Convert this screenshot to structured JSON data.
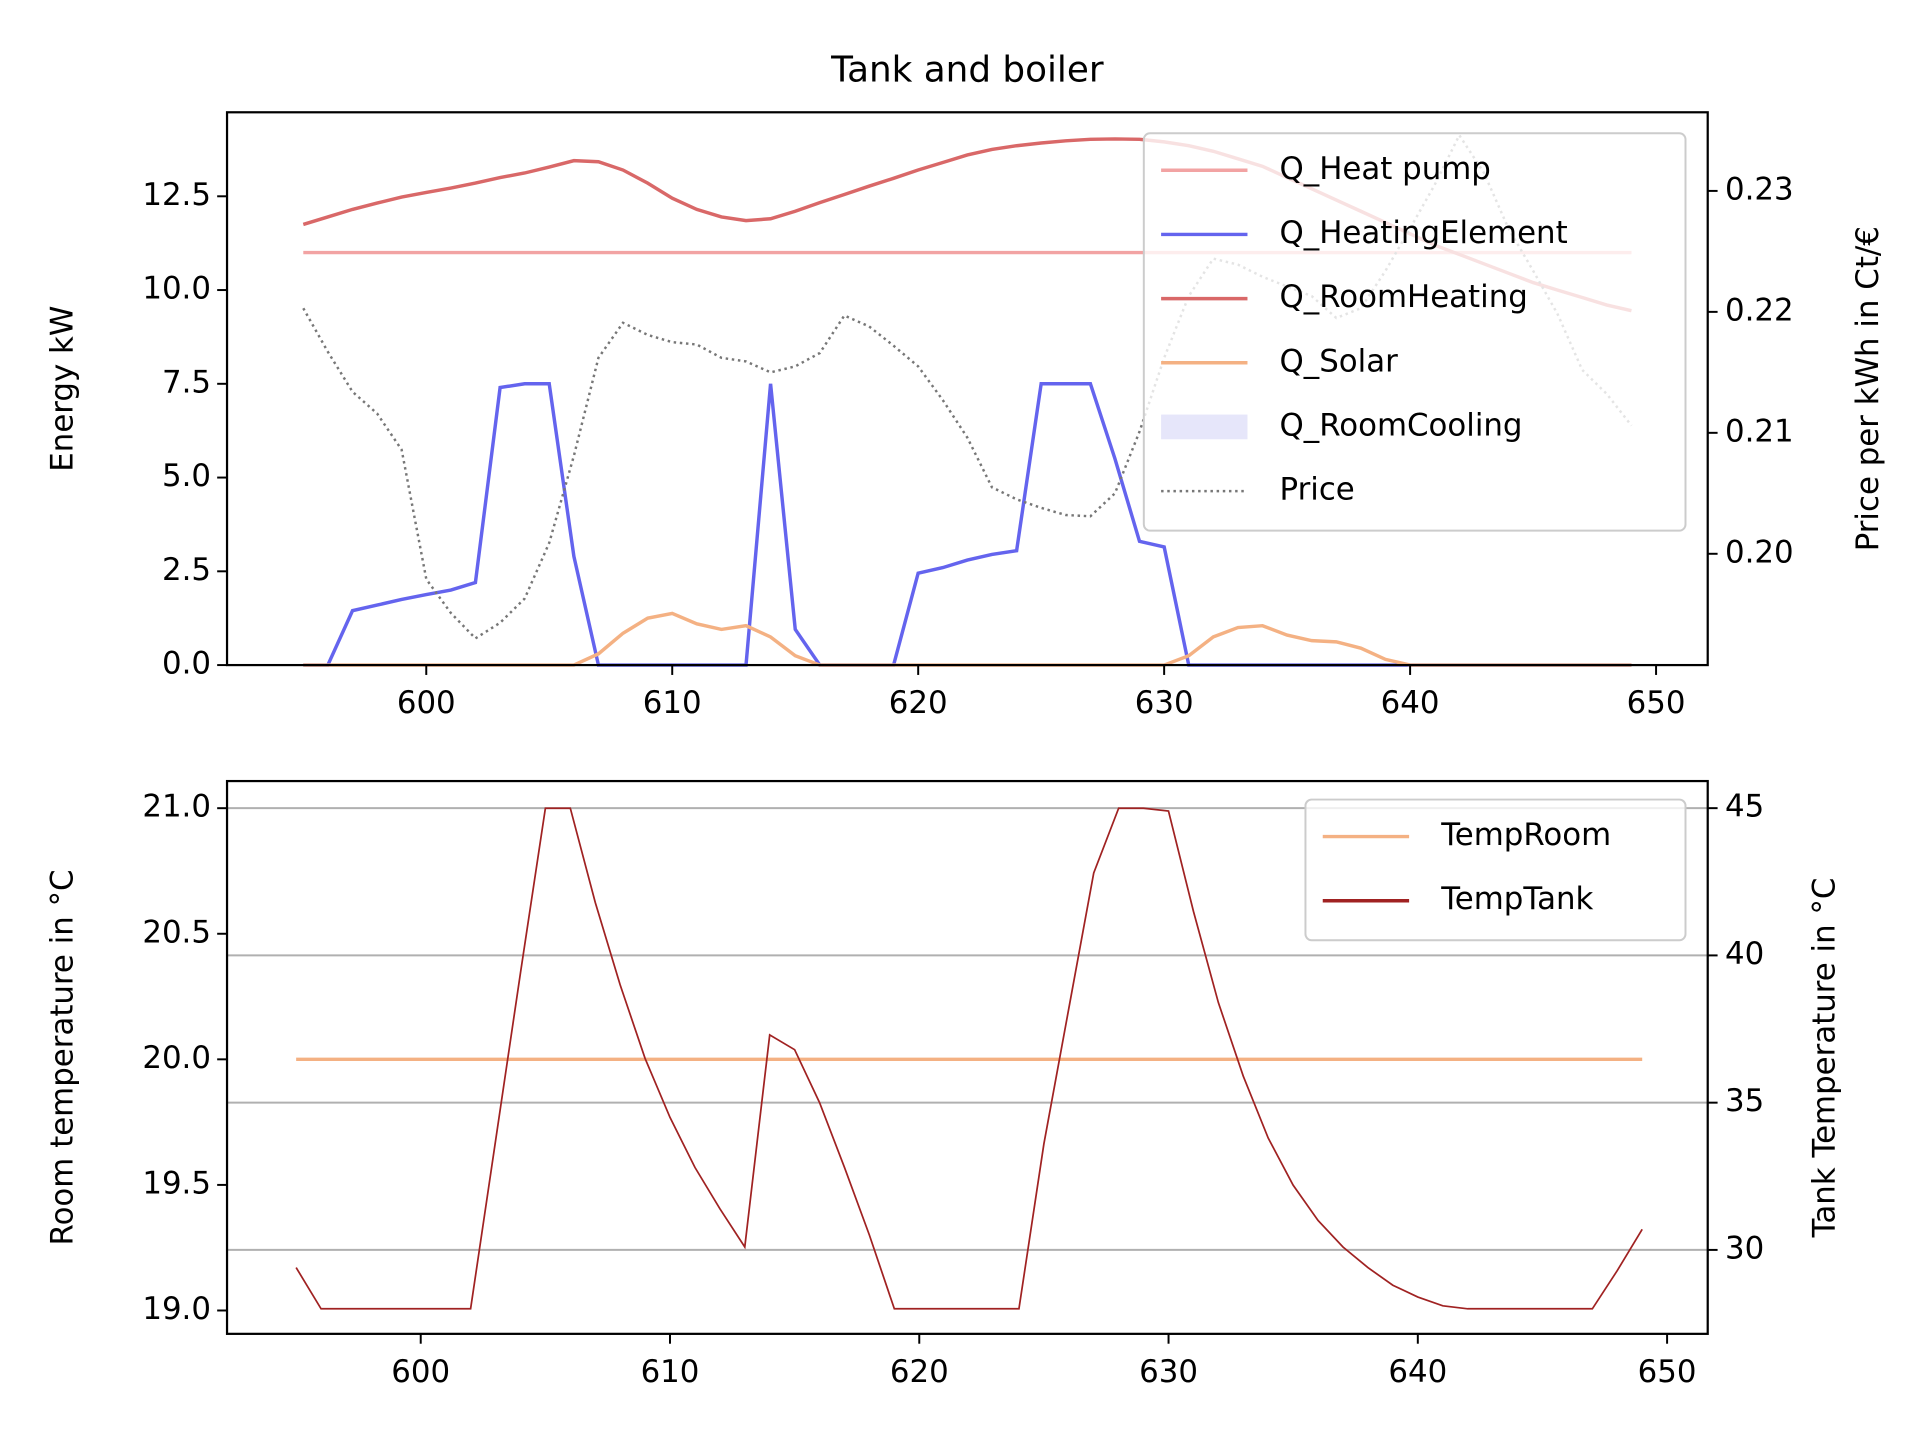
{
  "chart_data": [
    {
      "type": "line",
      "title": "Tank and boiler",
      "ylabel": "Energy kW",
      "y2label": "Price per kWh in Ct/€",
      "x": [
        595,
        596,
        597,
        598,
        599,
        600,
        601,
        602,
        603,
        604,
        605,
        606,
        607,
        608,
        609,
        610,
        611,
        612,
        613,
        614,
        615,
        616,
        617,
        618,
        619,
        620,
        621,
        622,
        623,
        624,
        625,
        626,
        627,
        628,
        629,
        630,
        631,
        632,
        633,
        634,
        635,
        636,
        637,
        638,
        639,
        640,
        641,
        642,
        643,
        644,
        645,
        646,
        647,
        648,
        649
      ],
      "xlim": [
        591.9,
        652.1
      ],
      "xticks": [
        600,
        610,
        620,
        630,
        640,
        650
      ],
      "ylim": [
        0,
        14.74
      ],
      "yticks": [
        {
          "value": 0,
          "label": "0.0"
        },
        2.5,
        {
          "value": 5,
          "label": "5.0"
        },
        7.5,
        {
          "value": 10,
          "label": "10.0"
        },
        12.5
      ],
      "y2lim": [
        0.1908,
        0.2365
      ],
      "y2ticks": [
        {
          "value": 0.2,
          "label": "0.20"
        },
        0.21,
        0.22,
        0.23
      ],
      "legend": "upper right",
      "series": [
        {
          "name": "Q_Heat pump",
          "color": "#f2a3a3",
          "values": [
            11,
            11,
            11,
            11,
            11,
            11,
            11,
            11,
            11,
            11,
            11,
            11,
            11,
            11,
            11,
            11,
            11,
            11,
            11,
            11,
            11,
            11,
            11,
            11,
            11,
            11,
            11,
            11,
            11,
            11,
            11,
            11,
            11,
            11,
            11,
            11,
            11,
            11,
            11,
            11,
            11,
            11,
            11,
            11,
            11,
            11,
            11,
            11,
            11,
            11,
            11,
            11,
            11,
            11,
            11
          ]
        },
        {
          "name": "Q_HeatingElement",
          "color": "#6464ee",
          "values": [
            0,
            0,
            1.45,
            1.6,
            1.75,
            1.88,
            2.0,
            2.2,
            7.4,
            7.5,
            7.5,
            2.9,
            0,
            0,
            0,
            0,
            0,
            0,
            0,
            7.5,
            0.95,
            0,
            0,
            0,
            0,
            2.45,
            2.6,
            2.8,
            2.95,
            3.05,
            7.5,
            7.5,
            7.5,
            5.5,
            3.3,
            3.15,
            0,
            0,
            0,
            0,
            0,
            0,
            0,
            0,
            0,
            0,
            0,
            0,
            0,
            0,
            0,
            0,
            0,
            0,
            0
          ]
        },
        {
          "name": "Q_RoomHeating",
          "color": "#d96868",
          "values": [
            11.75,
            11.95,
            12.15,
            12.32,
            12.48,
            12.6,
            12.72,
            12.85,
            13.0,
            13.12,
            13.28,
            13.45,
            13.42,
            13.2,
            12.85,
            12.45,
            12.15,
            11.95,
            11.85,
            11.9,
            12.1,
            12.33,
            12.55,
            12.77,
            12.98,
            13.2,
            13.4,
            13.6,
            13.75,
            13.85,
            13.92,
            13.98,
            14.02,
            14.03,
            14.02,
            13.95,
            13.85,
            13.7,
            13.5,
            13.3,
            13.0,
            12.7,
            12.4,
            12.1,
            11.8,
            11.5,
            11.2,
            10.95,
            10.7,
            10.45,
            10.2,
            10.0,
            9.8,
            9.6,
            9.45
          ]
        },
        {
          "name": "Q_Solar",
          "color": "#f4b183",
          "values": [
            0,
            0,
            0,
            0,
            0,
            0,
            0,
            0,
            0,
            0,
            0,
            0,
            0.3,
            0.85,
            1.25,
            1.38,
            1.1,
            0.95,
            1.05,
            0.75,
            0.25,
            0,
            0,
            0,
            0,
            0,
            0,
            0,
            0,
            0,
            0,
            0,
            0,
            0,
            0,
            0,
            0.25,
            0.75,
            1.0,
            1.05,
            0.8,
            0.65,
            0.62,
            0.45,
            0.15,
            0,
            0,
            0,
            0,
            0,
            0,
            0,
            0,
            0,
            0
          ]
        },
        {
          "name": "Q_RoomCooling",
          "color": "#e6e6fa",
          "kind": "area",
          "values": [
            0,
            0,
            0,
            0,
            0,
            0,
            0,
            0,
            0,
            0,
            0,
            0,
            0,
            0,
            0,
            0,
            0,
            0,
            0,
            0,
            0,
            0,
            0,
            0,
            0,
            0,
            0,
            0,
            0,
            0,
            0,
            0,
            0,
            0,
            0,
            0,
            0,
            0,
            0,
            0,
            0,
            0,
            0,
            0,
            0,
            0,
            0,
            0,
            0,
            0,
            0,
            0,
            0,
            0,
            0
          ]
        },
        {
          "name": "Price",
          "color": "#777777",
          "linestyle": "dotted",
          "axis": "y2",
          "values": [
            0.2203,
            0.2167,
            0.2134,
            0.2116,
            0.2086,
            0.1979,
            0.1951,
            0.193,
            0.1943,
            0.1963,
            0.2009,
            0.2081,
            0.2162,
            0.2191,
            0.2181,
            0.2175,
            0.2173,
            0.2162,
            0.2159,
            0.215,
            0.2155,
            0.2166,
            0.2197,
            0.2188,
            0.2172,
            0.2155,
            0.2127,
            0.2096,
            0.2055,
            0.2045,
            0.2038,
            0.2032,
            0.2031,
            0.205,
            0.2101,
            0.2162,
            0.2213,
            0.2244,
            0.2239,
            0.2229,
            0.2221,
            0.2213,
            0.2195,
            0.2203,
            0.2234,
            0.2269,
            0.2305,
            0.2346,
            0.2315,
            0.2269,
            0.2234,
            0.2198,
            0.2152,
            0.2132,
            0.2106
          ]
        }
      ]
    },
    {
      "type": "line",
      "ylabel": "Room temperature in °C",
      "y2label": "Tank Temperature in °C",
      "x": [
        595,
        596,
        597,
        598,
        599,
        600,
        601,
        602,
        603,
        604,
        605,
        606,
        607,
        608,
        609,
        610,
        611,
        612,
        613,
        614,
        615,
        616,
        617,
        618,
        619,
        620,
        621,
        622,
        623,
        624,
        625,
        626,
        627,
        628,
        629,
        630,
        631,
        632,
        633,
        634,
        635,
        636,
        637,
        638,
        639,
        640,
        641,
        642,
        643,
        644,
        645,
        646,
        647,
        648,
        649
      ],
      "xlim": [
        592.23,
        651.63
      ],
      "xticks": [
        600,
        610,
        620,
        630,
        640,
        650
      ],
      "ylim": [
        18.907,
        21.108
      ],
      "yticks": [
        {
          "value": 19,
          "label": "19.0"
        },
        19.5,
        {
          "value": 20,
          "label": "20.0"
        },
        20.5,
        {
          "value": 21,
          "label": "21.0"
        }
      ],
      "y2lim": [
        27.15,
        45.92
      ],
      "y2ticks": [
        30,
        35,
        40,
        45
      ],
      "grid": "y2",
      "legend": "upper right",
      "series": [
        {
          "name": "TempRoom",
          "color": "#f4b183",
          "values": [
            20,
            20,
            20,
            20,
            20,
            20,
            20,
            20,
            20,
            20,
            20,
            20,
            20,
            20,
            20,
            20,
            20,
            20,
            20,
            20,
            20,
            20,
            20,
            20,
            20,
            20,
            20,
            20,
            20,
            20,
            20,
            20,
            20,
            20,
            20,
            20,
            20,
            20,
            20,
            20,
            20,
            20,
            20,
            20,
            20,
            20,
            20,
            20,
            20,
            20,
            20,
            20,
            20,
            20,
            20
          ]
        },
        {
          "name": "TempTank",
          "color": "#a02222",
          "axis": "y2",
          "values": [
            29.4,
            28.0,
            28.0,
            28.0,
            28.0,
            28.0,
            28.0,
            28.0,
            33.7,
            39.4,
            45,
            45,
            41.8,
            39.0,
            36.5,
            34.5,
            32.8,
            31.4,
            30.1,
            37.3,
            36.8,
            35.0,
            32.8,
            30.5,
            28.0,
            28.0,
            28.0,
            28.0,
            28.0,
            28.0,
            33.6,
            38.2,
            42.8,
            45,
            45,
            44.9,
            41.5,
            38.4,
            35.9,
            33.8,
            32.2,
            31.0,
            30.1,
            29.4,
            28.8,
            28.4,
            28.1,
            28.0,
            28.0,
            28.0,
            28.0,
            28.0,
            28.0,
            29.3,
            30.7
          ]
        }
      ]
    }
  ]
}
